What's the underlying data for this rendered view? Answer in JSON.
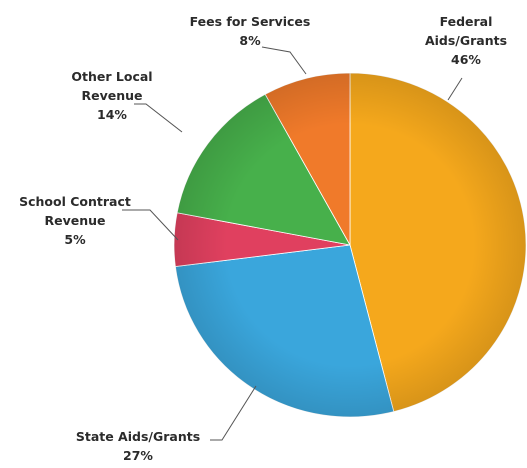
{
  "chart_data": {
    "type": "pie",
    "title": "",
    "slices": [
      {
        "label": "Federal Aids/Grants",
        "label_lines": [
          "Federal",
          "Aids/Grants"
        ],
        "value": 46,
        "value_text": "46%",
        "color": "#f5a81c"
      },
      {
        "label": "State Aids/Grants",
        "label_lines": [
          "State Aids/Grants"
        ],
        "value": 27,
        "value_text": "27%",
        "color": "#3aa6dc"
      },
      {
        "label": "School Contract Revenue",
        "label_lines": [
          "School Contract",
          "Revenue"
        ],
        "value": 5,
        "value_text": "5%",
        "color": "#e0405f"
      },
      {
        "label": "Other Local Revenue",
        "label_lines": [
          "Other Local",
          "Revenue"
        ],
        "value": 14,
        "value_text": "14%",
        "color": "#47b04b"
      },
      {
        "label": "Fees for Services",
        "label_lines": [
          "Fees for Services"
        ],
        "value": 8,
        "value_text": "8%",
        "color": "#f07a2a"
      }
    ],
    "start_angle": "12 o'clock",
    "direction": "clockwise",
    "legend": "none (callout labels)"
  }
}
